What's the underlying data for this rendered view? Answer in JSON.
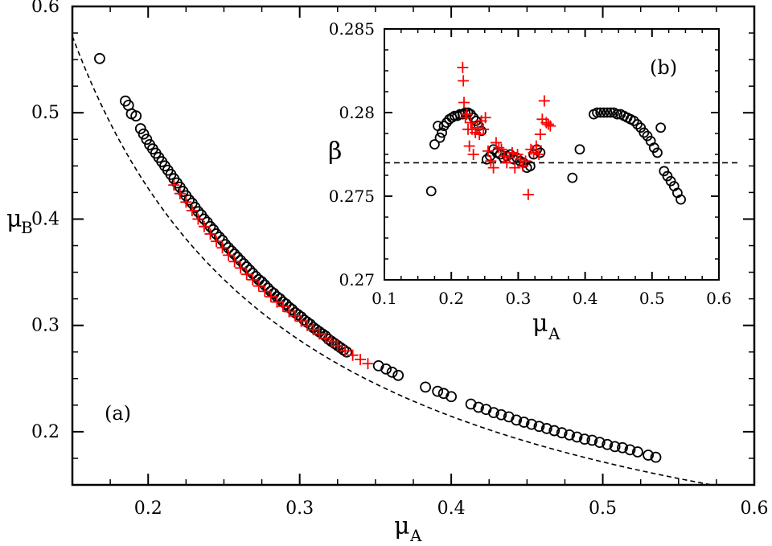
{
  "chart_data": [
    {
      "panel": "main",
      "type": "scatter",
      "panel_label": "(a)",
      "xlabel": "μ",
      "xlabel_sub": "A",
      "ylabel": "μ",
      "ylabel_sub": "B",
      "xlim": [
        0.15,
        0.6
      ],
      "ylim": [
        0.15,
        0.6
      ],
      "xticks": [
        0.2,
        0.3,
        0.4,
        0.5,
        0.6
      ],
      "yticks": [
        0.2,
        0.3,
        0.4,
        0.5,
        0.6
      ],
      "xtick_labels": [
        "0.2",
        "0.3",
        "0.4",
        "0.5",
        "0.6"
      ],
      "ytick_labels": [
        "0.2",
        "0.3",
        "0.4",
        "0.5",
        "0.6"
      ],
      "reference_curve": {
        "style": "dashed",
        "color": "#000000",
        "formula": "mu_B = 0.0858 / mu_A"
      },
      "series": [
        {
          "name": "circles",
          "marker": "circle",
          "color": "#000000",
          "x": [
            0.168,
            0.185,
            0.187,
            0.189,
            0.192,
            0.195,
            0.197,
            0.199,
            0.201,
            0.203,
            0.205,
            0.207,
            0.209,
            0.211,
            0.213,
            0.215,
            0.217,
            0.219,
            0.221,
            0.223,
            0.225,
            0.227,
            0.229,
            0.231,
            0.233,
            0.235,
            0.237,
            0.239,
            0.241,
            0.243,
            0.245,
            0.247,
            0.249,
            0.251,
            0.253,
            0.255,
            0.257,
            0.259,
            0.261,
            0.263,
            0.265,
            0.267,
            0.269,
            0.271,
            0.273,
            0.275,
            0.277,
            0.279,
            0.281,
            0.283,
            0.285,
            0.287,
            0.289,
            0.291,
            0.293,
            0.295,
            0.297,
            0.299,
            0.301,
            0.303,
            0.305,
            0.307,
            0.309,
            0.311,
            0.313,
            0.315,
            0.317,
            0.319,
            0.321,
            0.323,
            0.325,
            0.327,
            0.329,
            0.331,
            0.352,
            0.357,
            0.361,
            0.365,
            0.383,
            0.391,
            0.395,
            0.4,
            0.413,
            0.418,
            0.423,
            0.428,
            0.433,
            0.438,
            0.443,
            0.448,
            0.453,
            0.458,
            0.463,
            0.468,
            0.473,
            0.478,
            0.483,
            0.488,
            0.493,
            0.498,
            0.503,
            0.508,
            0.513,
            0.518,
            0.523,
            0.53,
            0.535
          ],
          "y": [
            0.551,
            0.511,
            0.507,
            0.499,
            0.497,
            0.485,
            0.48,
            0.475,
            0.47,
            0.466,
            0.462,
            0.458,
            0.454,
            0.45,
            0.446,
            0.442,
            0.438,
            0.434,
            0.43,
            0.426,
            0.422,
            0.418,
            0.415,
            0.411,
            0.407,
            0.404,
            0.4,
            0.397,
            0.393,
            0.39,
            0.386,
            0.383,
            0.38,
            0.376,
            0.373,
            0.37,
            0.367,
            0.364,
            0.361,
            0.358,
            0.355,
            0.352,
            0.349,
            0.346,
            0.343,
            0.341,
            0.338,
            0.335,
            0.332,
            0.33,
            0.327,
            0.325,
            0.322,
            0.32,
            0.317,
            0.315,
            0.312,
            0.31,
            0.308,
            0.305,
            0.303,
            0.301,
            0.298,
            0.296,
            0.294,
            0.292,
            0.29,
            0.287,
            0.285,
            0.283,
            0.281,
            0.279,
            0.277,
            0.275,
            0.262,
            0.259,
            0.256,
            0.253,
            0.242,
            0.238,
            0.236,
            0.233,
            0.226,
            0.223,
            0.221,
            0.218,
            0.216,
            0.214,
            0.211,
            0.209,
            0.207,
            0.205,
            0.203,
            0.201,
            0.199,
            0.197,
            0.195,
            0.193,
            0.192,
            0.19,
            0.188,
            0.186,
            0.185,
            0.183,
            0.181,
            0.178,
            0.176
          ]
        },
        {
          "name": "crosses",
          "marker": "plus",
          "color": "#ff0000",
          "x": [
            0.217,
            0.221,
            0.225,
            0.229,
            0.233,
            0.237,
            0.241,
            0.245,
            0.249,
            0.253,
            0.257,
            0.261,
            0.265,
            0.269,
            0.273,
            0.277,
            0.281,
            0.285,
            0.289,
            0.293,
            0.297,
            0.301,
            0.305,
            0.309,
            0.313,
            0.317,
            0.321,
            0.325,
            0.33,
            0.335,
            0.34,
            0.345
          ],
          "y": [
            0.432,
            0.424,
            0.416,
            0.408,
            0.4,
            0.393,
            0.386,
            0.379,
            0.373,
            0.366,
            0.36,
            0.354,
            0.348,
            0.343,
            0.337,
            0.332,
            0.327,
            0.322,
            0.318,
            0.313,
            0.309,
            0.304,
            0.3,
            0.296,
            0.292,
            0.288,
            0.285,
            0.281,
            0.276,
            0.272,
            0.268,
            0.264
          ]
        }
      ]
    },
    {
      "panel": "inset",
      "type": "scatter",
      "panel_label": "(b)",
      "xlabel": "μ",
      "xlabel_sub": "A",
      "ylabel": "β",
      "xlim": [
        0.1,
        0.6
      ],
      "ylim": [
        0.27,
        0.285
      ],
      "xticks": [
        0.1,
        0.2,
        0.3,
        0.4,
        0.5,
        0.6
      ],
      "yticks": [
        0.27,
        0.275,
        0.28,
        0.285
      ],
      "xtick_labels": [
        "0.1",
        "0.2",
        "0.3",
        "0.4",
        "0.5",
        "0.6"
      ],
      "ytick_labels": [
        "0.27",
        "0.275",
        "0.28",
        "0.285"
      ],
      "reference_line": {
        "y": 0.277,
        "style": "dashed",
        "color": "#000000"
      },
      "series": [
        {
          "name": "circles",
          "marker": "circle",
          "color": "#000000",
          "x": [
            0.17,
            0.175,
            0.18,
            0.183,
            0.186,
            0.189,
            0.193,
            0.197,
            0.201,
            0.205,
            0.209,
            0.213,
            0.217,
            0.221,
            0.225,
            0.229,
            0.233,
            0.237,
            0.241,
            0.245,
            0.253,
            0.258,
            0.263,
            0.268,
            0.273,
            0.278,
            0.283,
            0.288,
            0.293,
            0.298,
            0.303,
            0.308,
            0.313,
            0.318,
            0.323,
            0.328,
            0.333,
            0.381,
            0.392,
            0.413,
            0.418,
            0.423,
            0.428,
            0.433,
            0.438,
            0.443,
            0.448,
            0.453,
            0.458,
            0.463,
            0.468,
            0.473,
            0.478,
            0.483,
            0.488,
            0.493,
            0.498,
            0.503,
            0.508,
            0.513,
            0.518,
            0.523,
            0.528,
            0.533,
            0.538,
            0.543
          ],
          "y": [
            0.2753,
            0.2781,
            0.2792,
            0.2785,
            0.2788,
            0.2792,
            0.2794,
            0.2796,
            0.2797,
            0.2798,
            0.2798,
            0.2799,
            0.2799,
            0.28,
            0.28,
            0.2799,
            0.2797,
            0.2795,
            0.2792,
            0.2789,
            0.2772,
            0.2774,
            0.2778,
            0.2776,
            0.2775,
            0.2773,
            0.2774,
            0.2775,
            0.2772,
            0.2773,
            0.2771,
            0.277,
            0.2767,
            0.2768,
            0.2775,
            0.2778,
            0.2776,
            0.2761,
            0.2778,
            0.2799,
            0.28,
            0.28,
            0.28,
            0.28,
            0.28,
            0.28,
            0.2799,
            0.2799,
            0.2798,
            0.2797,
            0.2796,
            0.2795,
            0.2793,
            0.2791,
            0.2788,
            0.2786,
            0.2783,
            0.2779,
            0.2776,
            0.2791,
            0.2765,
            0.2762,
            0.2759,
            0.2756,
            0.2752,
            0.2748
          ]
        },
        {
          "name": "crosses",
          "marker": "plus",
          "color": "#ff0000",
          "x": [
            0.217,
            0.218,
            0.219,
            0.221,
            0.223,
            0.225,
            0.227,
            0.229,
            0.231,
            0.233,
            0.236,
            0.239,
            0.242,
            0.245,
            0.248,
            0.251,
            0.255,
            0.259,
            0.263,
            0.267,
            0.271,
            0.275,
            0.279,
            0.283,
            0.287,
            0.291,
            0.295,
            0.299,
            0.303,
            0.307,
            0.311,
            0.315,
            0.319,
            0.323,
            0.327,
            0.331,
            0.333,
            0.336,
            0.339,
            0.342,
            0.345,
            0.348
          ],
          "y": [
            0.2827,
            0.2819,
            0.2806,
            0.2797,
            0.2799,
            0.279,
            0.278,
            0.2794,
            0.279,
            0.2775,
            0.2788,
            0.2791,
            0.2787,
            0.2795,
            0.279,
            0.2797,
            0.2777,
            0.2771,
            0.2767,
            0.2782,
            0.2779,
            0.2778,
            0.2774,
            0.277,
            0.2773,
            0.2776,
            0.2767,
            0.2775,
            0.2772,
            0.2768,
            0.2771,
            0.2751,
            0.2778,
            0.2776,
            0.278,
            0.2775,
            0.2787,
            0.2796,
            0.2807,
            0.2794,
            0.2793,
            0.2792
          ]
        }
      ]
    }
  ]
}
